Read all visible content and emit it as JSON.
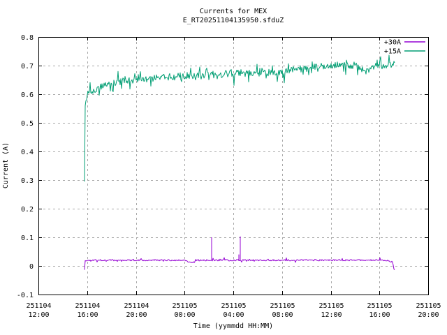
{
  "title": "Currents for MEX",
  "subtitle": "E_RT20251104135950.sfduZ",
  "axes": {
    "x": {
      "label": "Time (yymmdd HH:MM)"
    },
    "y": {
      "label": "Current (A)"
    }
  },
  "legend": [
    {
      "label": "+30A",
      "color": "#9400D3"
    },
    {
      "label": "+15A",
      "color": "#009E73"
    }
  ],
  "chart_data": {
    "type": "line",
    "title": "Currents for MEX",
    "subtitle": "E_RT20251104135950.sfduZ",
    "xlabel": "Time (yymmdd HH:MM)",
    "ylabel": "Current (A)",
    "x_unit": "hours since 251104 12:00",
    "x_range": [
      0,
      32
    ],
    "y_range": [
      -0.1,
      0.8
    ],
    "grid": true,
    "legend_position": "top-right-inside",
    "grid_color": "#a9a9a9",
    "noise_seed": 1337,
    "x_ticks": [
      {
        "t": 0,
        "date": "251104",
        "time": "12:00"
      },
      {
        "t": 4,
        "date": "251104",
        "time": "16:00"
      },
      {
        "t": 8,
        "date": "251104",
        "time": "20:00"
      },
      {
        "t": 12,
        "date": "251105",
        "time": "00:00"
      },
      {
        "t": 16,
        "date": "251105",
        "time": "04:00"
      },
      {
        "t": 20,
        "date": "251105",
        "time": "08:00"
      },
      {
        "t": 24,
        "date": "251105",
        "time": "12:00"
      },
      {
        "t": 28,
        "date": "251105",
        "time": "16:00"
      },
      {
        "t": 32,
        "date": "251105",
        "time": "20:00"
      }
    ],
    "y_ticks": [
      {
        "v": -0.1,
        "label": "-0.1"
      },
      {
        "v": 0,
        "label": "0"
      },
      {
        "v": 0.1,
        "label": "0.1"
      },
      {
        "v": 0.2,
        "label": "0.2"
      },
      {
        "v": 0.3,
        "label": "0.3"
      },
      {
        "v": 0.4,
        "label": "0.4"
      },
      {
        "v": 0.5,
        "label": "0.5"
      },
      {
        "v": 0.6,
        "label": "0.6"
      },
      {
        "v": 0.7,
        "label": "0.7"
      },
      {
        "v": 0.8,
        "label": "0.8"
      }
    ],
    "series": [
      {
        "name": "+30A",
        "color": "#9400D3",
        "t_start": 3.785,
        "t_end": 29.27,
        "baseline": [
          [
            3.785,
            -0.012
          ],
          [
            3.83,
            0.017
          ],
          [
            4.2,
            0.02
          ],
          [
            12.2,
            0.02
          ],
          [
            12.35,
            0.012
          ],
          [
            12.75,
            0.013
          ],
          [
            12.9,
            0.02
          ],
          [
            28.6,
            0.02
          ],
          [
            28.8,
            0.016
          ],
          [
            29.1,
            0.015
          ],
          [
            29.18,
            -0.012
          ],
          [
            29.27,
            -0.013
          ]
        ],
        "noise_amp": 0.0025,
        "spike_prob": 0.1,
        "spike_amp": 0.007,
        "spikes": [
          [
            14.22,
            0.1
          ],
          [
            16.44,
            0.04
          ],
          [
            16.56,
            0.103
          ]
        ]
      },
      {
        "name": "+15A",
        "color": "#009E73",
        "t_start": 3.785,
        "t_end": 29.27,
        "baseline": [
          [
            3.785,
            0.3
          ],
          [
            3.8,
            0.52
          ],
          [
            3.87,
            0.575
          ],
          [
            3.95,
            0.59
          ],
          [
            4.1,
            0.601
          ],
          [
            4.4,
            0.612
          ],
          [
            4.9,
            0.622
          ],
          [
            5.6,
            0.633
          ],
          [
            6.6,
            0.643
          ],
          [
            8,
            0.652
          ],
          [
            10,
            0.659
          ],
          [
            12,
            0.665
          ],
          [
            14,
            0.669
          ],
          [
            16,
            0.672
          ],
          [
            18,
            0.674
          ],
          [
            20,
            0.679
          ],
          [
            21.5,
            0.688
          ],
          [
            22.8,
            0.698
          ],
          [
            24,
            0.701
          ],
          [
            26,
            0.701
          ],
          [
            26.3,
            0.688
          ],
          [
            27.2,
            0.688
          ],
          [
            27.7,
            0.698
          ],
          [
            28.5,
            0.701
          ],
          [
            29.27,
            0.703
          ]
        ],
        "noise_amp": 0.012,
        "spike_prob": 0.22,
        "spike_amp": 0.033,
        "spikes": []
      }
    ]
  }
}
